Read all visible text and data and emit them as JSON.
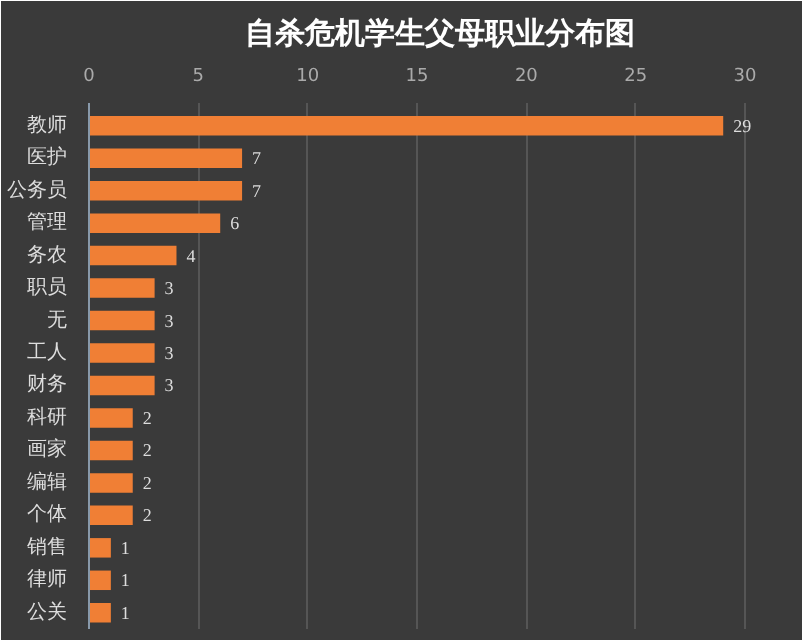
{
  "chart_data": {
    "type": "bar",
    "orientation": "horizontal",
    "title": "自杀危机学生父母职业分布图",
    "categories": [
      "教师",
      "医护",
      "公务员",
      "管理",
      "务农",
      "职员",
      "无",
      "工人",
      "财务",
      "科研",
      "画家",
      "编辑",
      "个体",
      "销售",
      "律师",
      "公关"
    ],
    "values": [
      29,
      7,
      7,
      6,
      4,
      3,
      3,
      3,
      3,
      2,
      2,
      2,
      2,
      1,
      1,
      1
    ],
    "color": "#f07f35",
    "xlim": [
      0,
      30
    ],
    "xticks": [
      0,
      5,
      10,
      15,
      20,
      25,
      30
    ],
    "grid": "x",
    "data_labels": true
  }
}
